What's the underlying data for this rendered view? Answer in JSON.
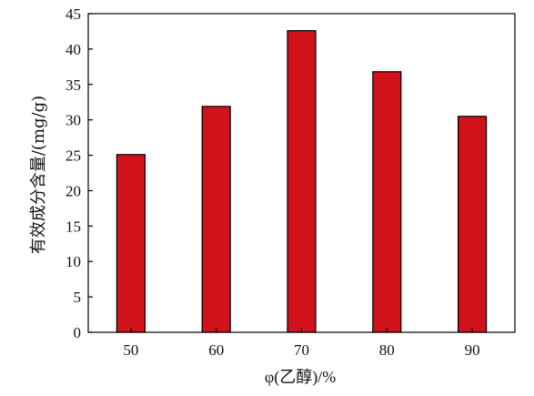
{
  "chart_data": {
    "type": "bar",
    "categories": [
      "50",
      "60",
      "70",
      "80",
      "90"
    ],
    "values": [
      25.1,
      31.9,
      42.6,
      36.8,
      30.5
    ],
    "xlabel": "φ(乙醇)/%",
    "ylabel": "有效成分含量/(mg/g)",
    "ylim": [
      0,
      45
    ],
    "yticks": [
      0,
      5,
      10,
      15,
      20,
      25,
      30,
      35,
      40,
      45
    ],
    "grid": false,
    "legend": "none",
    "bar_color": "#d0121b",
    "bar_edge_color": "#000000"
  }
}
